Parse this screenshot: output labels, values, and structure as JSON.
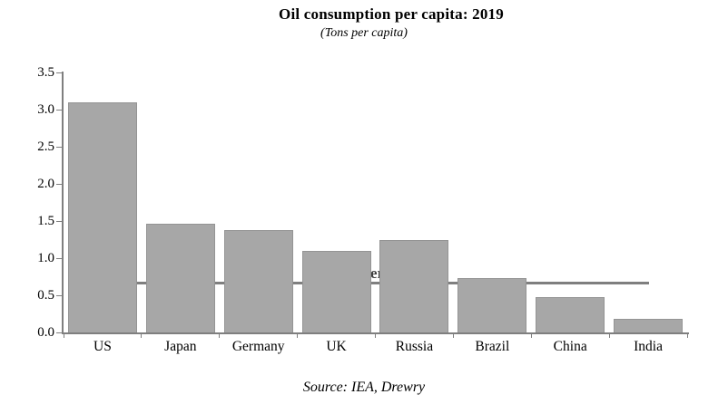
{
  "page": {
    "title": "Oil consumption per capita: 2019",
    "subtitle": "(Tons per capita)",
    "source": "Source: IEA, Drewry"
  },
  "chart_data": {
    "type": "bar",
    "title": "Oil consumption per capita: 2019",
    "subtitle": "(Tons per capita)",
    "source": "Source: IEA, Drewry",
    "xlabel": "",
    "ylabel": "Tons per capita",
    "categories": [
      "US",
      "Japan",
      "Germany",
      "UK",
      "Russia",
      "Brazil",
      "China",
      "India"
    ],
    "values": [
      3.1,
      1.46,
      1.38,
      1.1,
      1.24,
      0.73,
      0.48,
      0.18
    ],
    "ylim": [
      0,
      3.5
    ],
    "ytick_step": 0.5,
    "yticks": [
      "0.0",
      "0.5",
      "1.0",
      "1.5",
      "2.0",
      "2.5",
      "3.0",
      "3.5"
    ],
    "grid": false,
    "legend": false,
    "annotation": {
      "label": "Global Average",
      "value": 0.66
    },
    "colors": {
      "bar_fill": "#a7a7a7",
      "bar_border": "#949494",
      "average_line": "#7f7f7f",
      "axis": "#7f7f7f",
      "title_text": "#000000",
      "annotation_text": "#3f3f3f"
    }
  }
}
